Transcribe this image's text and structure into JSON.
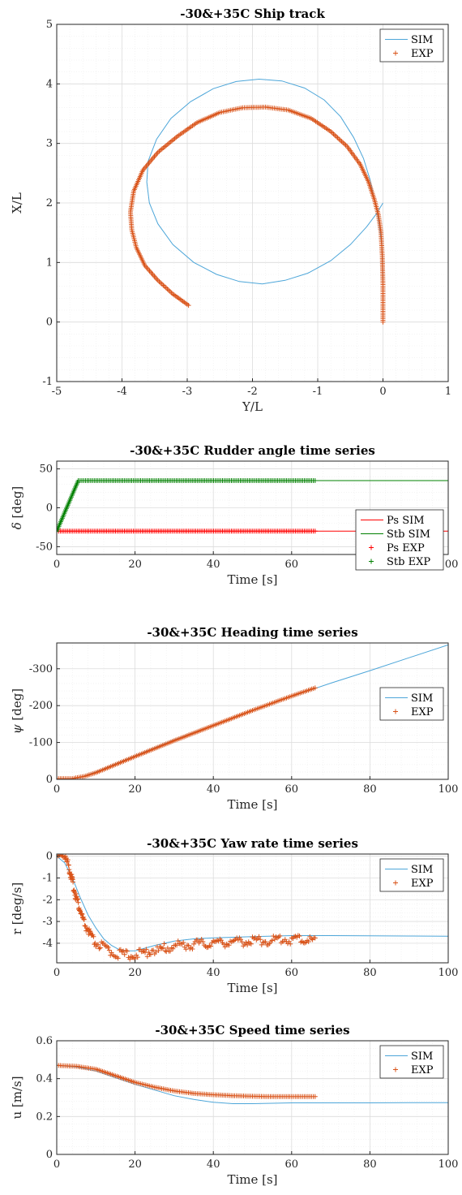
{
  "colors": {
    "sim_blue": "#4da6d9",
    "exp_orange": "#d95319",
    "ps_red": "#ff0000",
    "stb_green": "#008000"
  },
  "chart_data": [
    {
      "id": "track",
      "type": "line",
      "title": "-30&+35C Ship track",
      "xlabel": "Y/L",
      "ylabel": "X/L",
      "xlim": [
        -5,
        1
      ],
      "ylim": [
        -1,
        5
      ],
      "xticks": [
        "-5",
        "-4",
        "-3",
        "-2",
        "-1",
        "0",
        "1"
      ],
      "yticks": [
        "-1",
        "0",
        "1",
        "2",
        "3",
        "4",
        "5"
      ],
      "grid": true,
      "legend_position": "top-right",
      "series": [
        {
          "name": "SIM",
          "style": "line",
          "color": "sim_blue",
          "points": [
            [
              0.0,
              0.0
            ],
            [
              0.0,
              0.8
            ],
            [
              -0.02,
              1.3
            ],
            [
              -0.06,
              1.65
            ],
            [
              -0.09,
              1.85
            ],
            [
              -0.13,
              2.05
            ],
            [
              -0.2,
              2.4
            ],
            [
              -0.3,
              2.75
            ],
            [
              -0.45,
              3.1
            ],
            [
              -0.65,
              3.45
            ],
            [
              -0.9,
              3.73
            ],
            [
              -1.2,
              3.93
            ],
            [
              -1.55,
              4.05
            ],
            [
              -1.9,
              4.08
            ],
            [
              -2.25,
              4.04
            ],
            [
              -2.6,
              3.92
            ],
            [
              -2.95,
              3.7
            ],
            [
              -3.25,
              3.42
            ],
            [
              -3.47,
              3.07
            ],
            [
              -3.6,
              2.7
            ],
            [
              -3.62,
              2.35
            ],
            [
              -3.58,
              2.0
            ],
            [
              -3.45,
              1.65
            ],
            [
              -3.22,
              1.3
            ],
            [
              -2.9,
              1.0
            ],
            [
              -2.55,
              0.8
            ],
            [
              -2.2,
              0.68
            ],
            [
              -1.85,
              0.64
            ],
            [
              -1.5,
              0.7
            ],
            [
              -1.15,
              0.82
            ],
            [
              -0.8,
              1.03
            ],
            [
              -0.5,
              1.3
            ],
            [
              -0.25,
              1.6
            ],
            [
              -0.1,
              1.82
            ],
            [
              0.0,
              2.0
            ]
          ]
        },
        {
          "name": "EXP",
          "style": "marker",
          "color": "exp_orange",
          "points": [
            [
              0.0,
              0.0
            ],
            [
              0.0,
              0.6
            ],
            [
              -0.01,
              1.1
            ],
            [
              -0.03,
              1.5
            ],
            [
              -0.07,
              1.8
            ],
            [
              -0.13,
              2.05
            ],
            [
              -0.22,
              2.35
            ],
            [
              -0.35,
              2.65
            ],
            [
              -0.55,
              2.95
            ],
            [
              -0.8,
              3.2
            ],
            [
              -1.1,
              3.42
            ],
            [
              -1.45,
              3.56
            ],
            [
              -1.8,
              3.61
            ],
            [
              -2.15,
              3.6
            ],
            [
              -2.5,
              3.52
            ],
            [
              -2.85,
              3.35
            ],
            [
              -3.15,
              3.12
            ],
            [
              -3.45,
              2.85
            ],
            [
              -3.68,
              2.55
            ],
            [
              -3.82,
              2.2
            ],
            [
              -3.87,
              1.85
            ],
            [
              -3.85,
              1.55
            ],
            [
              -3.78,
              1.25
            ],
            [
              -3.65,
              0.95
            ],
            [
              -3.45,
              0.7
            ],
            [
              -3.22,
              0.47
            ],
            [
              -2.98,
              0.28
            ]
          ]
        }
      ]
    },
    {
      "id": "rudder",
      "type": "line",
      "title": "-30&+35C Rudder angle time series",
      "xlabel": "Time [s]",
      "ylabel_symbol": "δ",
      "ylabel_unit": " [deg]",
      "xlim": [
        0,
        100
      ],
      "ylim": [
        -60,
        60
      ],
      "xticks": [
        "0",
        "20",
        "40",
        "60",
        "80",
        "100"
      ],
      "yticks": [
        "-50",
        "0",
        "50"
      ],
      "grid": true,
      "legend_position": "right",
      "series": [
        {
          "name": "Ps SIM",
          "style": "line",
          "color": "ps_red",
          "points": [
            [
              0,
              -30
            ],
            [
              100,
              -30
            ]
          ]
        },
        {
          "name": "Stb SIM",
          "style": "line",
          "color": "stb_green",
          "points": [
            [
              0,
              -30
            ],
            [
              5.5,
              35
            ],
            [
              100,
              35
            ]
          ]
        },
        {
          "name": "Ps EXP",
          "style": "marker",
          "color": "ps_red",
          "points": [
            [
              0,
              -30
            ],
            [
              66,
              -30
            ]
          ]
        },
        {
          "name": "Stb EXP",
          "style": "marker",
          "color": "stb_green",
          "points": [
            [
              0,
              -30
            ],
            [
              5.5,
              35
            ],
            [
              66,
              35
            ]
          ]
        }
      ]
    },
    {
      "id": "heading",
      "type": "line",
      "title": "-30&+35C Heading time series",
      "xlabel": "Time [s]",
      "ylabel_symbol": "ψ",
      "ylabel_unit": " [deg]",
      "xlim": [
        0,
        100
      ],
      "ylim": [
        0,
        -370
      ],
      "xticks": [
        "0",
        "20",
        "40",
        "60",
        "80",
        "100"
      ],
      "yticks": [
        "0",
        "-100",
        "-200",
        "-300"
      ],
      "grid": true,
      "legend_position": "right",
      "series": [
        {
          "name": "SIM",
          "style": "line",
          "color": "sim_blue",
          "points": [
            [
              0,
              0
            ],
            [
              3,
              -1
            ],
            [
              6,
              -5
            ],
            [
              10,
              -20
            ],
            [
              15,
              -42
            ],
            [
              20,
              -64
            ],
            [
              30,
              -107
            ],
            [
              40,
              -147
            ],
            [
              50,
              -187
            ],
            [
              60,
              -225
            ],
            [
              70,
              -261
            ],
            [
              80,
              -295
            ],
            [
              90,
              -330
            ],
            [
              100,
              -365
            ]
          ]
        },
        {
          "name": "EXP",
          "style": "marker",
          "color": "exp_orange",
          "points": [
            [
              0,
              -2
            ],
            [
              4,
              -2
            ],
            [
              7,
              -8
            ],
            [
              10,
              -18
            ],
            [
              15,
              -40
            ],
            [
              20,
              -62
            ],
            [
              30,
              -105
            ],
            [
              40,
              -146
            ],
            [
              50,
              -187
            ],
            [
              60,
              -226
            ],
            [
              66,
              -248
            ]
          ]
        }
      ]
    },
    {
      "id": "yaw",
      "type": "line",
      "title": "-30&+35C Yaw rate time series",
      "xlabel": "Time [s]",
      "ylabel": "r [deg/s]",
      "xlim": [
        0,
        100
      ],
      "ylim": [
        -4.9,
        0.1
      ],
      "xticks": [
        "0",
        "20",
        "40",
        "60",
        "80",
        "100"
      ],
      "yticks": [
        "0",
        "-1",
        "-2",
        "-3",
        "-4"
      ],
      "grid": true,
      "legend_position": "top-right",
      "series": [
        {
          "name": "SIM",
          "style": "line",
          "color": "sim_blue",
          "points": [
            [
              0,
              0
            ],
            [
              2,
              -0.3
            ],
            [
              4,
              -1.0
            ],
            [
              6,
              -1.9
            ],
            [
              8,
              -2.7
            ],
            [
              10,
              -3.3
            ],
            [
              12,
              -3.8
            ],
            [
              14,
              -4.1
            ],
            [
              16,
              -4.3
            ],
            [
              18,
              -4.35
            ],
            [
              20,
              -4.35
            ],
            [
              22,
              -4.25
            ],
            [
              25,
              -4.1
            ],
            [
              30,
              -3.9
            ],
            [
              35,
              -3.8
            ],
            [
              40,
              -3.75
            ],
            [
              50,
              -3.7
            ],
            [
              60,
              -3.65
            ],
            [
              70,
              -3.65
            ],
            [
              80,
              -3.66
            ],
            [
              90,
              -3.67
            ],
            [
              100,
              -3.68
            ]
          ]
        },
        {
          "name": "EXP",
          "style": "marker",
          "color": "exp_orange",
          "points": [
            [
              0,
              0
            ],
            [
              1,
              0.05
            ],
            [
              2,
              -0.05
            ],
            [
              3,
              -0.4
            ],
            [
              4,
              -1.2
            ],
            [
              5,
              -1.9
            ],
            [
              6,
              -2.5
            ],
            [
              7,
              -3.1
            ],
            [
              8,
              -3.4
            ],
            [
              9,
              -3.8
            ],
            [
              10,
              -4.0
            ],
            [
              12,
              -4.2
            ],
            [
              14,
              -4.4
            ],
            [
              16,
              -4.5
            ],
            [
              18,
              -4.55
            ],
            [
              20,
              -4.5
            ],
            [
              22,
              -4.5
            ],
            [
              24,
              -4.3
            ],
            [
              26,
              -4.35
            ],
            [
              28,
              -4.2
            ],
            [
              30,
              -4.15
            ],
            [
              32,
              -4.05
            ],
            [
              34,
              -4.1
            ],
            [
              36,
              -4.0
            ],
            [
              38,
              -4.05
            ],
            [
              40,
              -3.95
            ],
            [
              42,
              -4.0
            ],
            [
              44,
              -3.9
            ],
            [
              46,
              -3.95
            ],
            [
              48,
              -3.9
            ],
            [
              50,
              -3.9
            ],
            [
              52,
              -3.85
            ],
            [
              54,
              -3.9
            ],
            [
              56,
              -3.85
            ],
            [
              58,
              -3.8
            ],
            [
              60,
              -3.85
            ],
            [
              62,
              -3.8
            ],
            [
              64,
              -3.85
            ],
            [
              66,
              -3.85
            ]
          ]
        }
      ]
    },
    {
      "id": "speed",
      "type": "line",
      "title": "-30&+35C Speed time series",
      "xlabel": "Time [s]",
      "ylabel": "u [m/s]",
      "xlim": [
        0,
        100
      ],
      "ylim": [
        0,
        0.6
      ],
      "xticks": [
        "0",
        "20",
        "40",
        "60",
        "80",
        "100"
      ],
      "yticks": [
        "0",
        "0.2",
        "0.4",
        "0.6"
      ],
      "grid": true,
      "legend_position": "top-right",
      "series": [
        {
          "name": "SIM",
          "style": "line",
          "color": "sim_blue",
          "points": [
            [
              0,
              0.47
            ],
            [
              5,
              0.462
            ],
            [
              10,
              0.44
            ],
            [
              15,
              0.405
            ],
            [
              20,
              0.37
            ],
            [
              25,
              0.34
            ],
            [
              30,
              0.31
            ],
            [
              35,
              0.29
            ],
            [
              40,
              0.275
            ],
            [
              45,
              0.268
            ],
            [
              50,
              0.268
            ],
            [
              60,
              0.272
            ],
            [
              70,
              0.272
            ],
            [
              80,
              0.272
            ],
            [
              90,
              0.273
            ],
            [
              100,
              0.273
            ]
          ]
        },
        {
          "name": "EXP",
          "style": "marker",
          "color": "exp_orange",
          "points": [
            [
              0,
              0.47
            ],
            [
              5,
              0.465
            ],
            [
              10,
              0.45
            ],
            [
              15,
              0.415
            ],
            [
              20,
              0.38
            ],
            [
              25,
              0.355
            ],
            [
              30,
              0.335
            ],
            [
              35,
              0.322
            ],
            [
              40,
              0.315
            ],
            [
              45,
              0.31
            ],
            [
              50,
              0.307
            ],
            [
              55,
              0.305
            ],
            [
              60,
              0.305
            ],
            [
              66,
              0.305
            ]
          ]
        }
      ]
    }
  ]
}
